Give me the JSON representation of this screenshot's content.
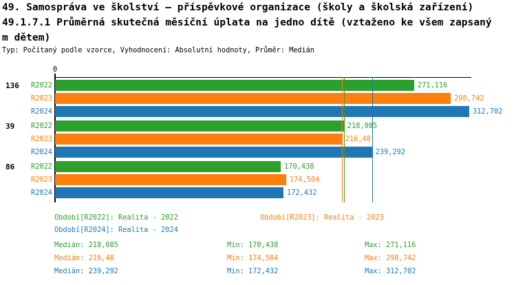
{
  "header": {
    "line1": "49. Samospráva ve školství – příspěvkové organizace (školy a školská zařízení)",
    "line2": "49.1.7.1 Průměrná skutečná měsíční úplata na jedno dítě (vztaženo ke všem zapsaný",
    "line3": "m dětem)",
    "meta": "Typ: Počítaný podle vzorce, Vyhodnocení: Absolutní hodnoty, Průměr: Medián"
  },
  "colors": {
    "r2022_green": "#2ca02c",
    "r2023_orange": "#ff7f0e",
    "r2024_blue": "#1f77b4",
    "axis": "#000000",
    "background": "#ffffff"
  },
  "chart_data": {
    "type": "bar",
    "orientation": "horizontal",
    "title": "49.1.7.1 Průměrná skutečná měsíční úplata na jedno dítě (vztaženo ke všem zapsaným dětem)",
    "x_origin_label": "0",
    "xlim": [
      0,
      315
    ],
    "grid": false,
    "legend_position": "bottom",
    "categories": [
      "136",
      "39",
      "86"
    ],
    "series": [
      {
        "name": "R2022",
        "color": "#2ca02c",
        "values": [
          271.116,
          218.085,
          170.438
        ],
        "value_labels": [
          "271,116",
          "218,085",
          "170,438"
        ],
        "median": 218.085
      },
      {
        "name": "R2023",
        "color": "#ff7f0e",
        "values": [
          298.742,
          216.48,
          174.504
        ],
        "value_labels": [
          "298,742",
          "216,48",
          "174,504"
        ],
        "median": 216.48
      },
      {
        "name": "R2024",
        "color": "#1f77b4",
        "values": [
          312.702,
          239.292,
          172.432
        ],
        "value_labels": [
          "312,702",
          "239,292",
          "172,432"
        ],
        "median": 239.292
      }
    ]
  },
  "legend": {
    "items": [
      {
        "text": "Období[R2022]: Realita - 2022",
        "color": "#2ca02c"
      },
      {
        "text": "Období[R2023]: Realita - 2023",
        "color": "#ff7f0e"
      },
      {
        "text": "Období[R2024]: Realita - 2024",
        "color": "#1f77b4"
      }
    ]
  },
  "stats": {
    "rows": [
      {
        "median": "Medián: 218,085",
        "min": "Min: 170,438",
        "max": "Max: 271,116",
        "color": "#2ca02c"
      },
      {
        "median": "Medián: 216,48",
        "min": "Min: 174,504",
        "max": "Max: 298,742",
        "color": "#ff7f0e"
      },
      {
        "median": "Medián: 239,292",
        "min": "Min: 172,432",
        "max": "Max: 312,702",
        "color": "#1f77b4"
      }
    ]
  }
}
